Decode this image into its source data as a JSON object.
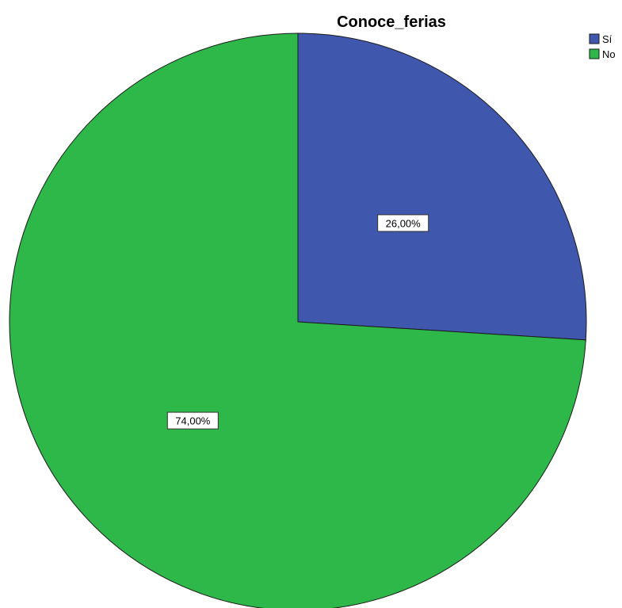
{
  "chart_data": {
    "type": "pie",
    "title": "Conoce_ferias",
    "categories": [
      "Sí",
      "No"
    ],
    "values": [
      26.0,
      74.0
    ],
    "labels": [
      "26,00%",
      "74,00%"
    ],
    "colors": [
      "#3f58ad",
      "#2fb84a"
    ],
    "start": "12 o'clock",
    "direction": "clockwise",
    "legend_position": "top-right"
  }
}
